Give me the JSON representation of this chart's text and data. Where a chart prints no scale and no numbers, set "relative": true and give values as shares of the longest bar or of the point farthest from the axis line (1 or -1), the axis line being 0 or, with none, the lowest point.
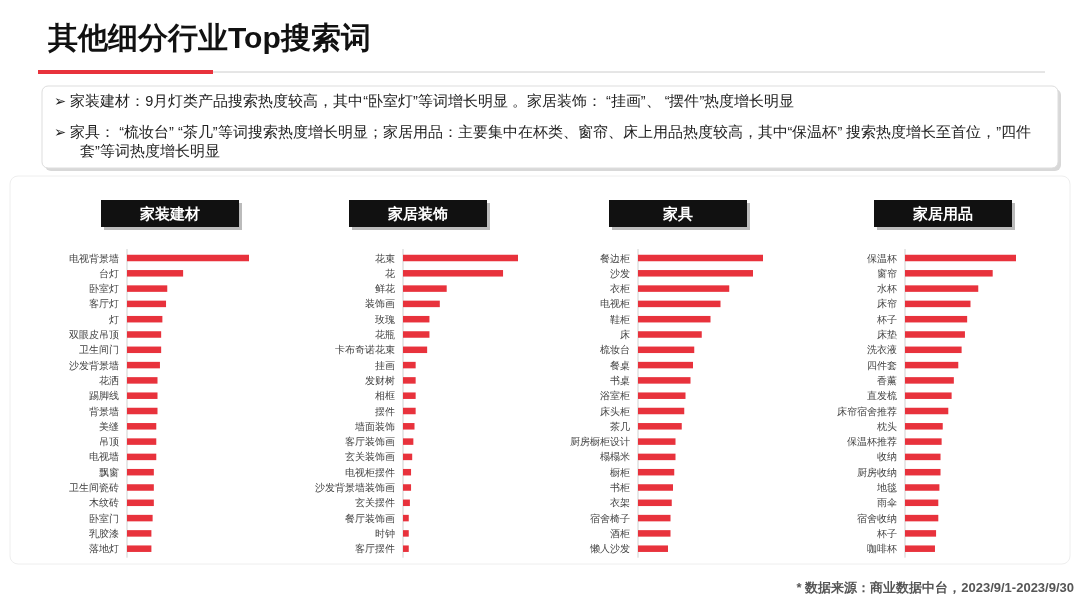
{
  "chart_data": [
    {
      "type": "other",
      "title": "其他细分行业Top搜索词",
      "annotations": [
        "➢  家装建材：9月灯类产品搜索热度较高，其中“卧室灯”等词增长明显 。家居装饰： “挂画”、 “摆件”热度增长明显",
        "➢  家具： “梳妆台” “茶几”等词搜索热度增长明显；家居用品：主要集中在杯类、窗帘、床上用品热度较高，其中“保温杯” 搜索热度增长至首位，”四件套”等词热度增长明显",
        "* 数据来源：商业数据中台，2023/9/1-2023/9/30"
      ]
    },
    {
      "type": "bar",
      "orientation": "horizontal",
      "relative": true,
      "title": "家装建材",
      "color": "#e8323c",
      "categories": [
        "电视背景墙",
        "台灯",
        "卧室灯",
        "客厅灯",
        "灯",
        "双眼皮吊顶",
        "卫生间门",
        "沙发背景墙",
        "花洒",
        "踢脚线",
        "背景墙",
        "美缝",
        "吊顶",
        "电视墙",
        "飘窗",
        "卫生间瓷砖",
        "木纹砖",
        "卧室门",
        "乳胶漆",
        "落地灯"
      ],
      "values": [
        1,
        0.46,
        0.33,
        0.32,
        0.29,
        0.28,
        0.28,
        0.27,
        0.25,
        0.25,
        0.25,
        0.24,
        0.24,
        0.24,
        0.22,
        0.22,
        0.22,
        0.21,
        0.2,
        0.2
      ]
    },
    {
      "type": "bar",
      "orientation": "horizontal",
      "relative": true,
      "title": "家居装饰",
      "color": "#e8323c",
      "categories": [
        "花束",
        "花",
        "鲜花",
        "装饰画",
        "玫瑰",
        "花瓶",
        "卡布奇诺花束",
        "挂画",
        "发财树",
        "相框",
        "摆件",
        "墙面装饰",
        "客厅装饰画",
        "玄关装饰画",
        "电视柜摆件",
        "沙发背景墙装饰画",
        "玄关摆件",
        "餐厅装饰画",
        "时钟",
        "客厅摆件"
      ],
      "values": [
        1,
        0.87,
        0.38,
        0.32,
        0.23,
        0.23,
        0.21,
        0.11,
        0.11,
        0.11,
        0.11,
        0.1,
        0.09,
        0.08,
        0.07,
        0.07,
        0.06,
        0.05,
        0.05,
        0.05
      ]
    },
    {
      "type": "bar",
      "orientation": "horizontal",
      "relative": true,
      "title": "家具",
      "color": "#e8323c",
      "categories": [
        "餐边柜",
        "沙发",
        "衣柜",
        "电视柜",
        "鞋柜",
        "床",
        "梳妆台",
        "餐桌",
        "书桌",
        "浴室柜",
        "床头柜",
        "茶几",
        "厨房橱柜设计",
        "榻榻米",
        "橱柜",
        "书柜",
        "衣架",
        "宿舍椅子",
        "酒柜",
        "懒人沙发"
      ],
      "values": [
        1,
        0.92,
        0.73,
        0.66,
        0.58,
        0.51,
        0.45,
        0.44,
        0.42,
        0.38,
        0.37,
        0.35,
        0.3,
        0.3,
        0.29,
        0.28,
        0.27,
        0.26,
        0.26,
        0.24
      ]
    },
    {
      "type": "bar",
      "orientation": "horizontal",
      "relative": true,
      "title": "家居用品",
      "color": "#e8323c",
      "categories": [
        "保温杯",
        "窗帘",
        "水杯",
        "床帘",
        "杯子",
        "床垫",
        "洗衣液",
        "四件套",
        "香薰",
        "直发梳",
        "床帘宿舍推荐",
        "枕头",
        "保温杯推荐",
        "收纳",
        "厨房收纳",
        "地毯",
        "雨伞",
        "宿舍收纳",
        "杯子",
        "咖啡杯"
      ],
      "values": [
        1,
        0.79,
        0.66,
        0.59,
        0.56,
        0.54,
        0.51,
        0.48,
        0.44,
        0.42,
        0.39,
        0.34,
        0.33,
        0.32,
        0.32,
        0.31,
        0.3,
        0.3,
        0.28,
        0.27
      ]
    }
  ]
}
